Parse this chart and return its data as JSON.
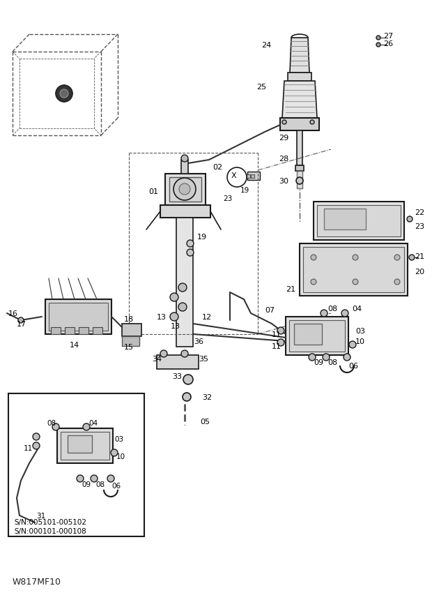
{
  "bg_color": "#ffffff",
  "fig_width": 6.2,
  "fig_height": 8.54,
  "dpi": 100,
  "watermark": "W817MF10",
  "sn_lines": [
    "S/N:005101-005102",
    "S/N:000101-000108"
  ],
  "line_color": "#1a1a1a",
  "dash_color": "#555555"
}
